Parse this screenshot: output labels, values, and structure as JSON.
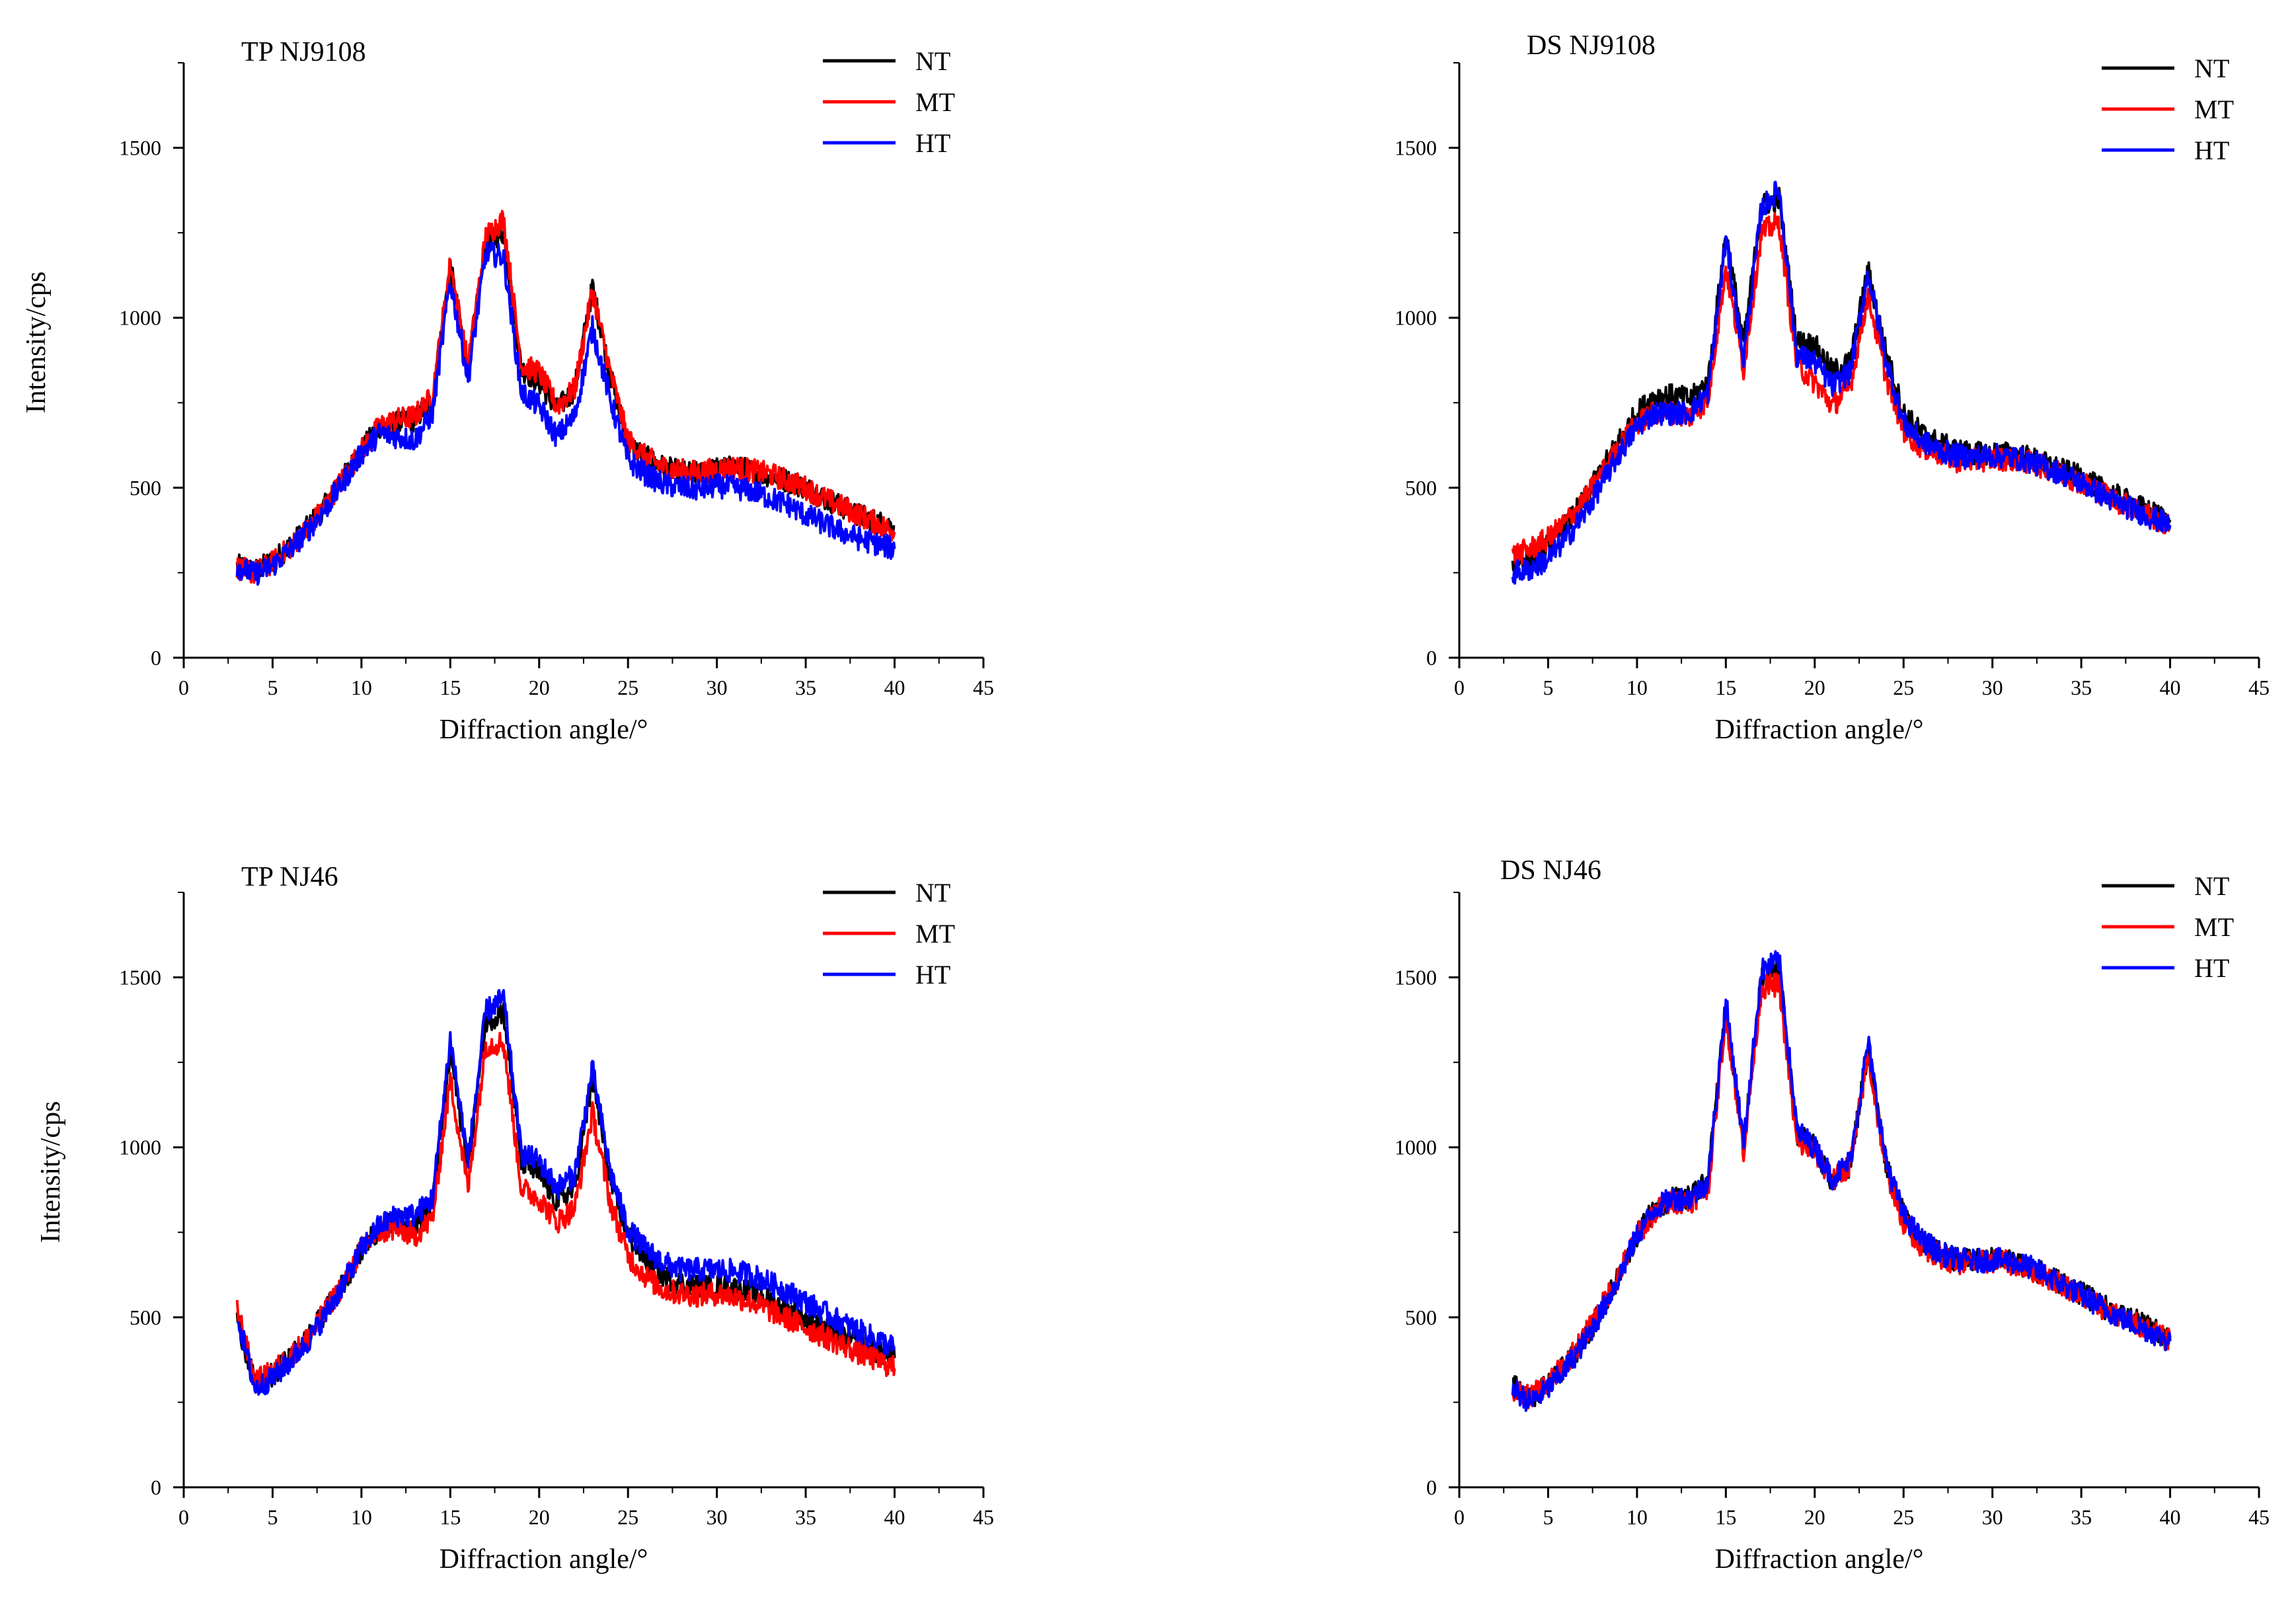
{
  "chart_data": [
    {
      "type": "line",
      "title": "TP NJ9108",
      "xlabel": "Diffraction angle/°",
      "ylabel": "Intensity/cps",
      "xlim": [
        0,
        45
      ],
      "ylim": [
        0,
        1750
      ],
      "xticks": [
        "0",
        "5",
        "10",
        "15",
        "20",
        "25",
        "30",
        "35",
        "40",
        "45"
      ],
      "yticks": [
        "0",
        "500",
        "1000",
        "1500"
      ],
      "grid": false,
      "legend_position": "top-right",
      "x": [
        3,
        4,
        5,
        6,
        7,
        8,
        9,
        10,
        11,
        12,
        13,
        14,
        15,
        16,
        17,
        18,
        19,
        20,
        21,
        22,
        23,
        24,
        25,
        26,
        27,
        28,
        29,
        30,
        31,
        32,
        33,
        34,
        35,
        36,
        37,
        38,
        39,
        40
      ],
      "series": [
        {
          "name": "NT",
          "color": "#000000",
          "values": [
            270,
            255,
            285,
            330,
            385,
            450,
            530,
            610,
            680,
            690,
            700,
            760,
            1150,
            850,
            1220,
            1250,
            850,
            810,
            730,
            790,
            1090,
            830,
            630,
            590,
            560,
            545,
            540,
            555,
            560,
            550,
            535,
            520,
            500,
            470,
            445,
            420,
            400,
            385
          ]
        },
        {
          "name": "MT",
          "color": "#ff0000",
          "values": [
            265,
            250,
            280,
            325,
            380,
            450,
            530,
            610,
            680,
            700,
            710,
            770,
            1160,
            860,
            1240,
            1290,
            860,
            840,
            740,
            790,
            1080,
            840,
            640,
            590,
            560,
            550,
            545,
            555,
            560,
            550,
            540,
            520,
            500,
            470,
            445,
            420,
            395,
            370
          ]
        },
        {
          "name": "HT",
          "color": "#0000ff",
          "values": [
            270,
            245,
            270,
            320,
            375,
            440,
            520,
            600,
            660,
            650,
            640,
            720,
            1110,
            820,
            1190,
            1180,
            780,
            740,
            650,
            710,
            970,
            760,
            580,
            540,
            510,
            500,
            495,
            505,
            500,
            490,
            470,
            450,
            420,
            395,
            370,
            350,
            335,
            320
          ]
        }
      ]
    },
    {
      "type": "line",
      "title": "DS NJ9108",
      "xlabel": "Diffraction angle/°",
      "ylabel": "",
      "xlim": [
        0,
        45
      ],
      "ylim": [
        0,
        1750
      ],
      "xticks": [
        "0",
        "5",
        "10",
        "15",
        "20",
        "25",
        "30",
        "35",
        "40",
        "45"
      ],
      "yticks": [
        "0",
        "500",
        "1000",
        "1500"
      ],
      "grid": false,
      "legend_position": "top-right",
      "x": [
        3,
        4,
        5,
        6,
        7,
        8,
        9,
        10,
        11,
        12,
        13,
        14,
        15,
        16,
        17,
        18,
        19,
        20,
        21,
        22,
        23,
        24,
        25,
        26,
        27,
        28,
        29,
        30,
        31,
        32,
        33,
        34,
        35,
        36,
        37,
        38,
        39,
        40
      ],
      "series": [
        {
          "name": "NT",
          "color": "#000000",
          "values": [
            280,
            290,
            330,
            390,
            460,
            550,
            640,
            720,
            770,
            770,
            760,
            810,
            1250,
            920,
            1330,
            1350,
            930,
            920,
            840,
            870,
            1140,
            900,
            720,
            660,
            630,
            610,
            600,
            600,
            600,
            590,
            570,
            550,
            530,
            500,
            475,
            450,
            425,
            405
          ]
        },
        {
          "name": "MT",
          "color": "#ff0000",
          "values": [
            300,
            320,
            350,
            400,
            460,
            540,
            620,
            690,
            720,
            720,
            710,
            760,
            1150,
            850,
            1250,
            1280,
            860,
            810,
            740,
            800,
            1070,
            830,
            670,
            620,
            600,
            580,
            580,
            585,
            585,
            575,
            560,
            540,
            515,
            490,
            460,
            440,
            415,
            385
          ]
        },
        {
          "name": "HT",
          "color": "#0000ff",
          "values": [
            250,
            260,
            290,
            350,
            420,
            510,
            600,
            680,
            720,
            720,
            720,
            780,
            1230,
            880,
            1320,
            1380,
            890,
            870,
            800,
            840,
            1130,
            880,
            690,
            640,
            610,
            595,
            590,
            595,
            590,
            580,
            560,
            540,
            515,
            485,
            455,
            435,
            410,
            390
          ]
        }
      ]
    },
    {
      "type": "line",
      "title": "TP NJ46",
      "xlabel": "Diffraction angle/°",
      "ylabel": "Intensity/cps",
      "xlim": [
        0,
        45
      ],
      "ylim": [
        0,
        1750
      ],
      "xticks": [
        "0",
        "5",
        "10",
        "15",
        "20",
        "25",
        "30",
        "35",
        "40",
        "45"
      ],
      "yticks": [
        "0",
        "500",
        "1000",
        "1500"
      ],
      "grid": false,
      "legend_position": "top-right",
      "x": [
        3,
        4,
        5,
        6,
        7,
        8,
        9,
        10,
        11,
        12,
        13,
        14,
        15,
        16,
        17,
        18,
        19,
        20,
        21,
        22,
        23,
        24,
        25,
        26,
        27,
        28,
        29,
        30,
        31,
        32,
        33,
        34,
        35,
        36,
        37,
        38,
        39,
        40
      ],
      "series": [
        {
          "name": "NT",
          "color": "#000000",
          "values": [
            500,
            300,
            330,
            380,
            440,
            520,
            600,
            700,
            760,
            780,
            770,
            830,
            1280,
            940,
            1370,
            1400,
            960,
            920,
            840,
            880,
            1200,
            900,
            740,
            670,
            620,
            600,
            590,
            590,
            585,
            570,
            550,
            520,
            495,
            470,
            445,
            420,
            400,
            380
          ]
        },
        {
          "name": "MT",
          "color": "#ff0000",
          "values": [
            530,
            310,
            340,
            385,
            440,
            520,
            600,
            700,
            750,
            760,
            740,
            790,
            1200,
            880,
            1300,
            1310,
            880,
            850,
            780,
            820,
            1100,
            840,
            680,
            620,
            580,
            570,
            565,
            570,
            560,
            545,
            520,
            495,
            470,
            445,
            420,
            395,
            375,
            350
          ]
        },
        {
          "name": "HT",
          "color": "#0000ff",
          "values": [
            510,
            290,
            320,
            370,
            430,
            510,
            600,
            700,
            770,
            800,
            800,
            850,
            1320,
            960,
            1400,
            1440,
            980,
            960,
            880,
            920,
            1230,
            930,
            760,
            700,
            660,
            640,
            640,
            640,
            635,
            625,
            600,
            575,
            545,
            515,
            485,
            460,
            435,
            410
          ]
        }
      ]
    },
    {
      "type": "line",
      "title": "DS NJ46",
      "xlabel": "Diffraction angle/°",
      "ylabel": "",
      "xlim": [
        0,
        45
      ],
      "ylim": [
        0,
        1750
      ],
      "xticks": [
        "0",
        "5",
        "10",
        "15",
        "20",
        "25",
        "30",
        "35",
        "40",
        "45"
      ],
      "yticks": [
        "0",
        "500",
        "1000",
        "1500"
      ],
      "grid": false,
      "legend_position": "top-right",
      "x": [
        3,
        4,
        5,
        6,
        7,
        8,
        9,
        10,
        11,
        12,
        13,
        14,
        15,
        16,
        17,
        18,
        19,
        20,
        21,
        22,
        23,
        24,
        25,
        26,
        27,
        28,
        29,
        30,
        31,
        32,
        33,
        34,
        35,
        36,
        37,
        38,
        39,
        40
      ],
      "series": [
        {
          "name": "NT",
          "color": "#000000",
          "values": [
            300,
            260,
            300,
            360,
            430,
            520,
            620,
            740,
            820,
            850,
            850,
            900,
            1420,
            1010,
            1500,
            1530,
            1040,
            1000,
            900,
            950,
            1290,
            960,
            800,
            730,
            690,
            670,
            665,
            670,
            665,
            650,
            625,
            600,
            570,
            540,
            510,
            490,
            465,
            440
          ]
        },
        {
          "name": "MT",
          "color": "#ff0000",
          "values": [
            280,
            265,
            305,
            365,
            440,
            530,
            630,
            740,
            810,
            840,
            840,
            880,
            1390,
            990,
            1470,
            1480,
            1010,
            990,
            900,
            950,
            1270,
            940,
            780,
            710,
            680,
            660,
            660,
            665,
            660,
            645,
            620,
            595,
            565,
            535,
            505,
            480,
            455,
            430
          ]
        },
        {
          "name": "HT",
          "color": "#0000ff",
          "values": [
            290,
            250,
            290,
            350,
            425,
            515,
            620,
            740,
            820,
            850,
            850,
            900,
            1430,
            1010,
            1520,
            1550,
            1050,
            1000,
            910,
            960,
            1310,
            960,
            800,
            730,
            690,
            670,
            665,
            670,
            665,
            650,
            625,
            595,
            565,
            535,
            505,
            480,
            455,
            430
          ]
        }
      ]
    }
  ]
}
